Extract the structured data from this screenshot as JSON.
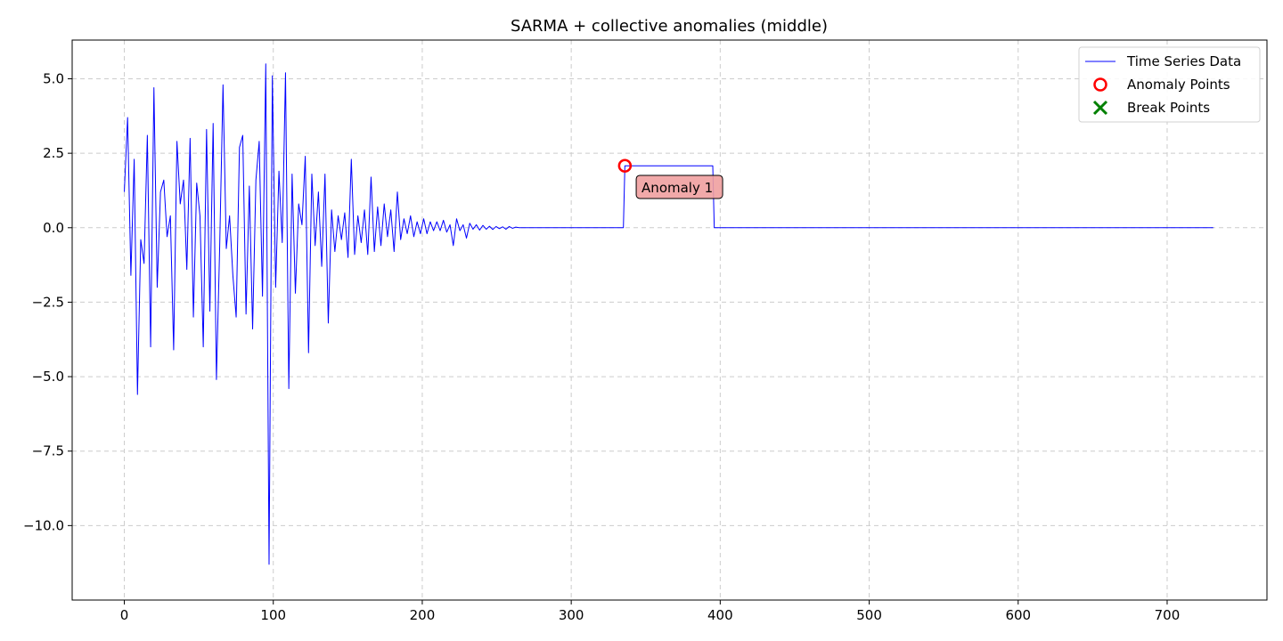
{
  "chart_data": {
    "type": "line",
    "title": "SARMA + collective anomalies (middle)",
    "xlabel": "",
    "ylabel": "",
    "xlim": [
      -35,
      767
    ],
    "ylim": [
      -12.5,
      6.3
    ],
    "x_ticks": [
      0,
      100,
      200,
      300,
      400,
      500,
      600,
      700
    ],
    "y_ticks": [
      5.0,
      2.5,
      0.0,
      -2.5,
      -5.0,
      -7.5,
      -10.0
    ],
    "y_tick_labels": [
      "5.0",
      "2.5",
      "0.0",
      "−2.5",
      "−5.0",
      "−7.5",
      "−10.0"
    ],
    "grid": true,
    "legend_position": "top-right",
    "colors": {
      "series": "#0000ff",
      "anomaly": "#ff0000",
      "break": "#008000",
      "annotation_bg": "#f0a0a0",
      "grid": "#cccccc"
    },
    "series": [
      {
        "name": "Time Series Data",
        "x_start": 0,
        "decay_segment": {
          "x_from": 0,
          "x_to": 265,
          "values": [
            1.2,
            3.7,
            -1.6,
            2.3,
            -5.6,
            -0.4,
            -1.2,
            3.1,
            -4.0,
            4.7,
            -2.0,
            1.2,
            1.6,
            -0.3,
            0.4,
            -4.1,
            2.9,
            0.8,
            1.6,
            -1.4,
            3.0,
            -3.0,
            1.5,
            0.4,
            -4.0,
            3.3,
            -2.8,
            3.5,
            -5.1,
            -0.6,
            4.8,
            -0.7,
            0.4,
            -1.6,
            -3.0,
            2.7,
            3.1,
            -2.9,
            1.4,
            -3.4,
            1.6,
            2.9,
            -2.3,
            5.5,
            -11.3,
            5.1,
            -2.0,
            1.9,
            -0.5,
            5.2,
            -5.4,
            1.8,
            -2.2,
            0.8,
            0.1,
            2.4,
            -4.2,
            1.8,
            -0.6,
            1.2,
            -1.3,
            1.8,
            -3.2,
            0.6,
            -0.8,
            0.4,
            -0.4,
            0.5,
            -1.0,
            2.3,
            -0.9,
            0.4,
            -0.5,
            0.6,
            -0.9,
            1.7,
            -0.8,
            0.7,
            -0.6,
            0.8,
            -0.3,
            0.6,
            -0.8,
            1.2,
            -0.4,
            0.3,
            -0.2,
            0.4,
            -0.3,
            0.2,
            -0.2,
            0.3,
            -0.2,
            0.2,
            -0.1,
            0.2,
            -0.1,
            0.25,
            -0.15,
            0.1,
            -0.6,
            0.3,
            -0.1,
            0.1,
            -0.35,
            0.15,
            -0.05,
            0.1,
            -0.08,
            0.08,
            -0.05,
            0.05,
            -0.06,
            0.04,
            -0.03,
            0.03,
            -0.05,
            0.04,
            -0.02,
            0.02,
            0.0
          ]
        },
        "collective_anomaly": {
          "x_from": 336,
          "x_to": 396,
          "value": 2.08
        },
        "tail": {
          "x_from": 396,
          "x_to": 731,
          "value": 0.0
        }
      }
    ],
    "anomaly_points": [
      {
        "x": 336,
        "y": 2.08
      }
    ],
    "break_points": [],
    "annotations": [
      {
        "text": "Anomaly 1",
        "x": 346,
        "y": 1.25
      }
    ],
    "legend": [
      {
        "label": "Time Series Data",
        "marker": "line"
      },
      {
        "label": "Anomaly Points",
        "marker": "circle"
      },
      {
        "label": "Break Points",
        "marker": "x"
      }
    ]
  }
}
